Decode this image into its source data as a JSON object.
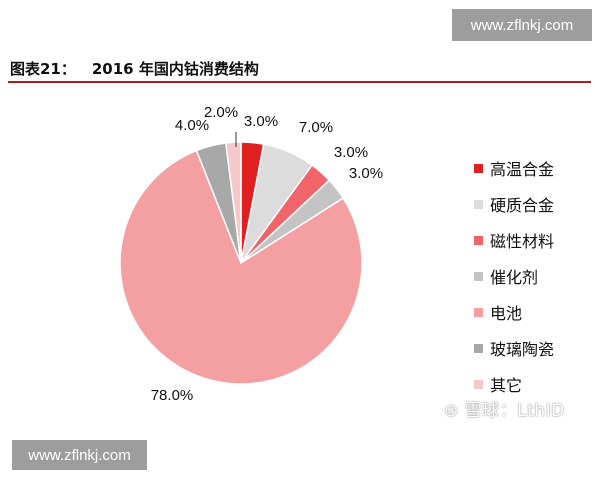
{
  "watermark": {
    "site": "www.zflnkj.com",
    "social": "雪球：LthID"
  },
  "caption": {
    "number": "图表21：",
    "title": "2016 年国内钴消费结构"
  },
  "chart_data": {
    "type": "pie",
    "title": "2016 年国内钴消费结构",
    "start_angle_deg": 0,
    "direction": "clockwise",
    "slices": [
      {
        "label": "高温合金",
        "value": 3.0,
        "display": "3.0%",
        "color": "#e02020"
      },
      {
        "label": "硬质合金",
        "value": 7.0,
        "display": "7.0%",
        "color": "#dcdcdc"
      },
      {
        "label": "磁性材料",
        "value": 3.0,
        "display": "3.0%",
        "color": "#f0646a"
      },
      {
        "label": "催化剂",
        "value": 3.0,
        "display": "3.0%",
        "color": "#c4c4c4"
      },
      {
        "label": "电池",
        "value": 78.0,
        "display": "78.0%",
        "color": "#f4a0a2"
      },
      {
        "label": "玻璃陶瓷",
        "value": 4.0,
        "display": "4.0%",
        "color": "#a8a8a8"
      },
      {
        "label": "其它",
        "value": 2.0,
        "display": "2.0%",
        "color": "#f6c8ca"
      }
    ],
    "legend_position": "right"
  }
}
